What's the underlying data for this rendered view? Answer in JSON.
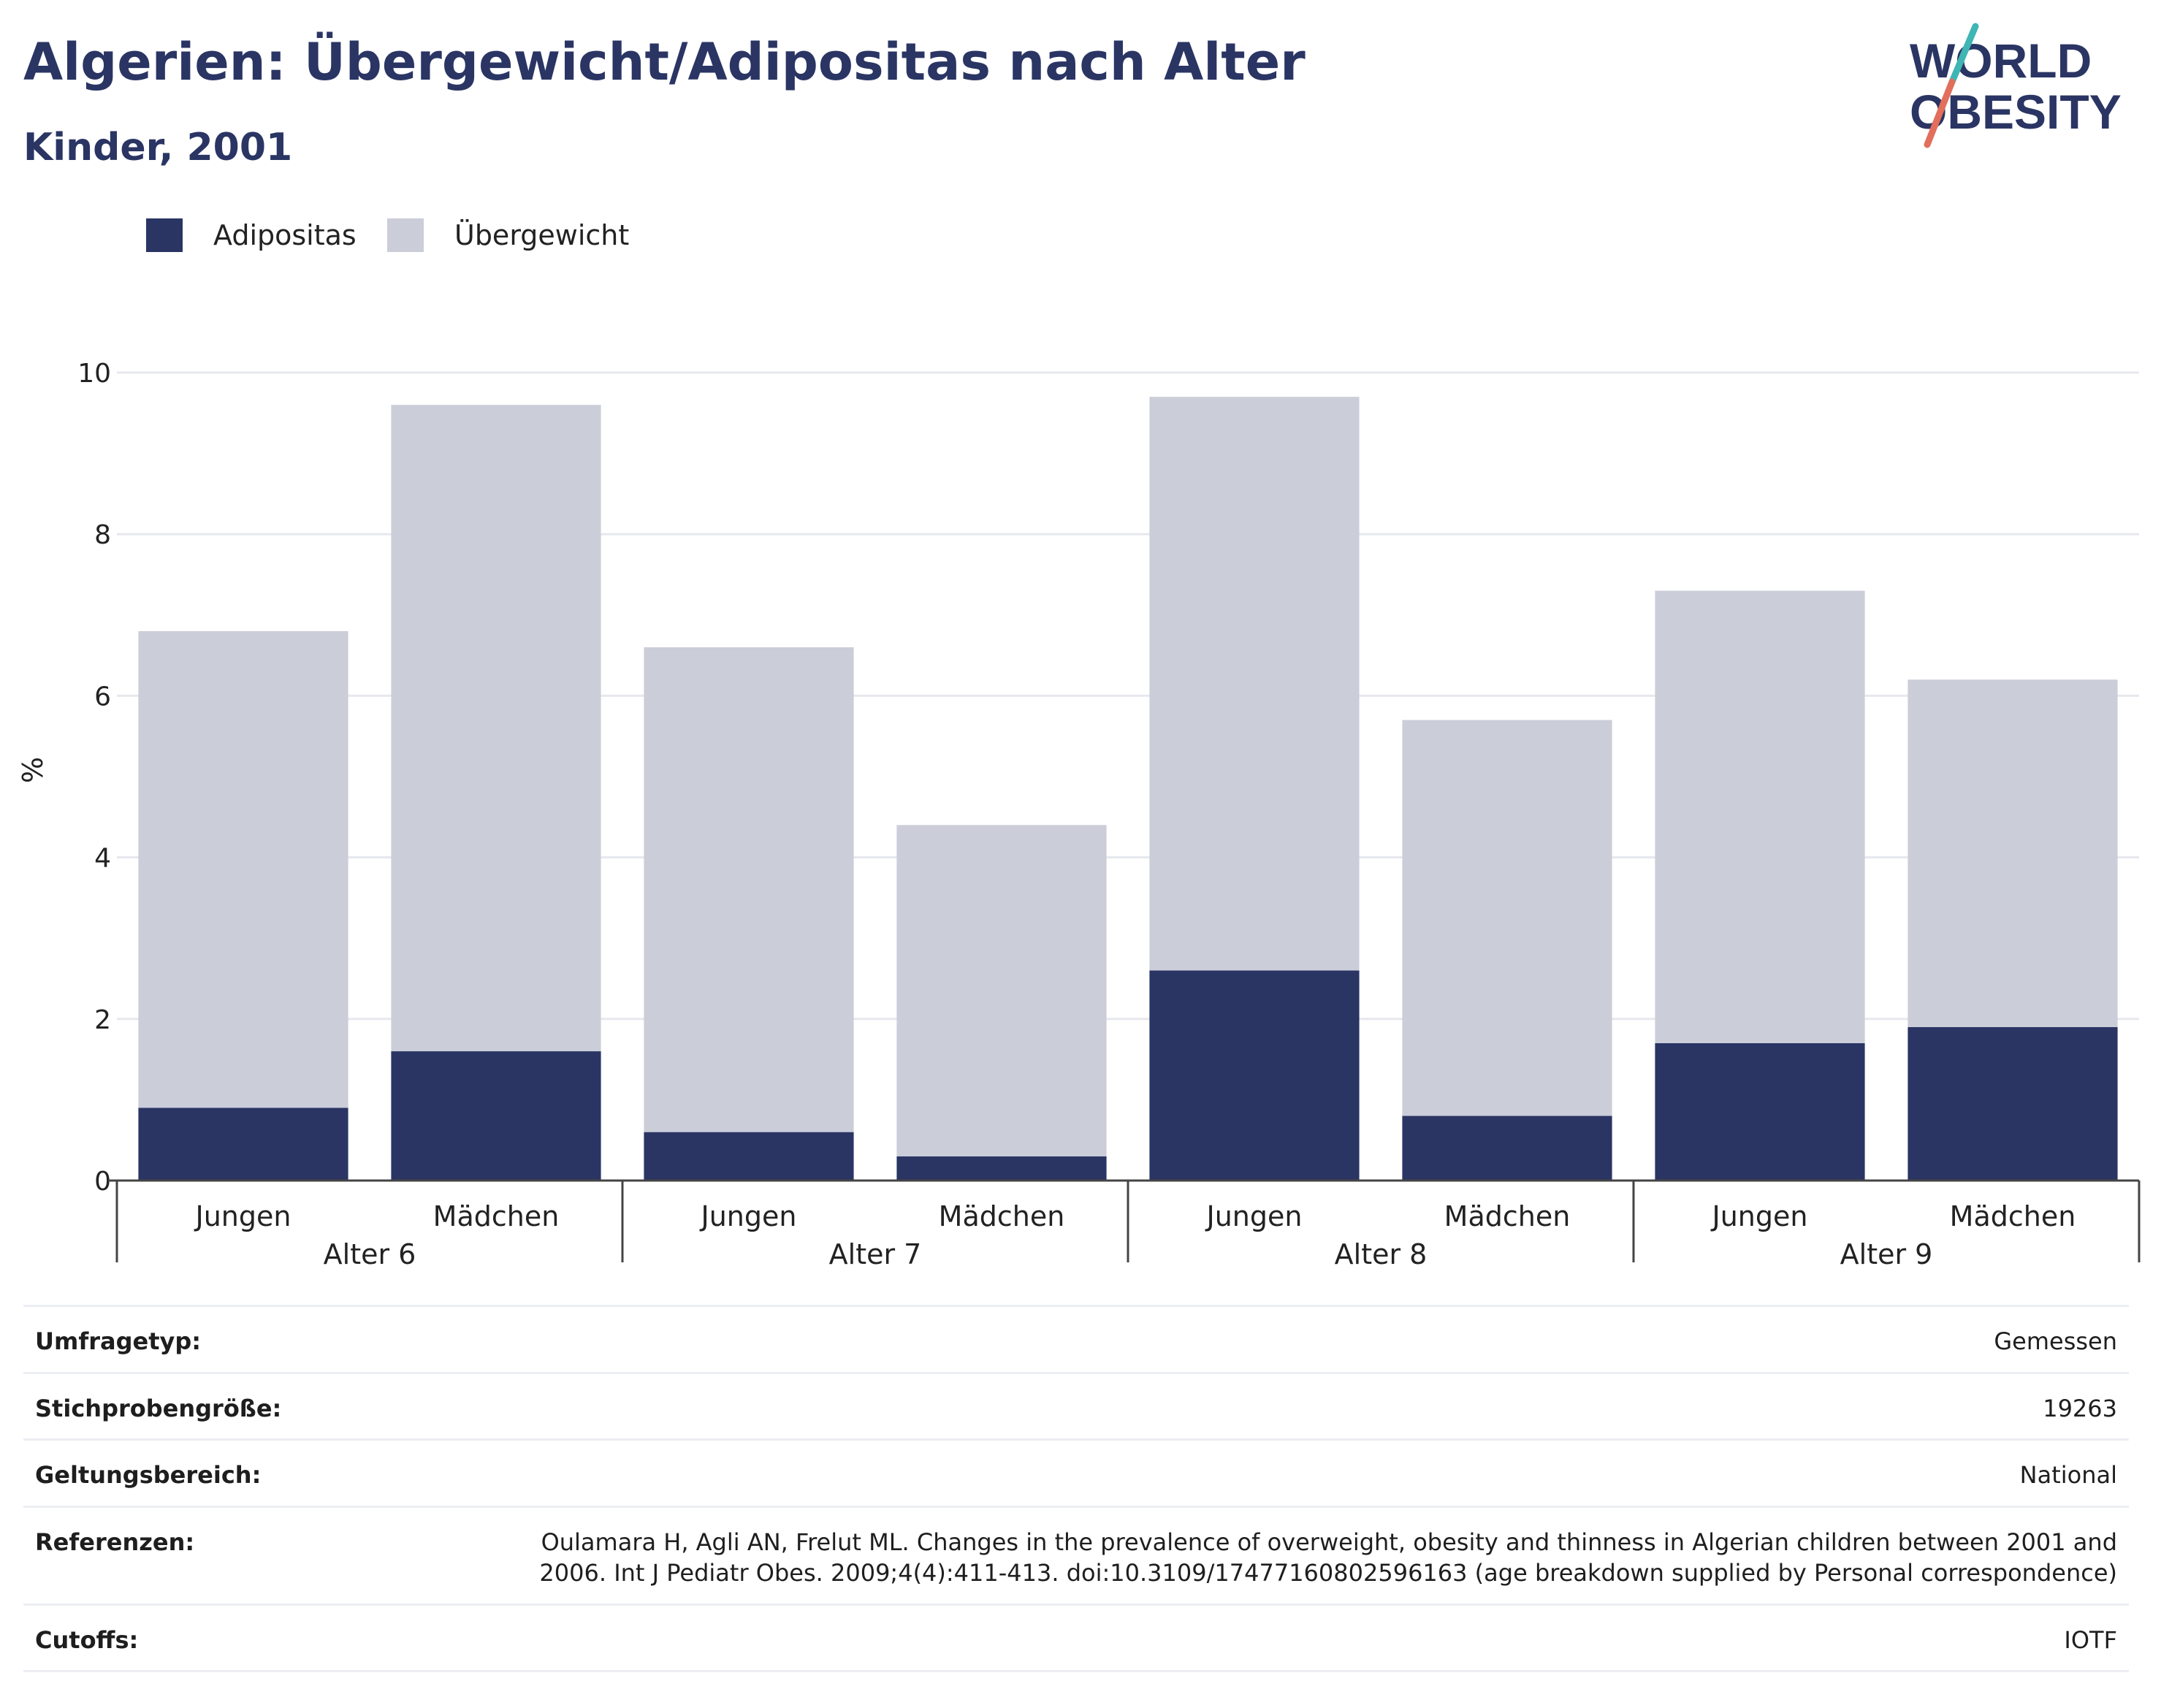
{
  "header": {
    "title": "Algerien: Übergewicht/Adipositas nach Alter",
    "subtitle": "Kinder, 2001"
  },
  "logo": {
    "line1": "WORLD",
    "line2": "OBESITY",
    "accent_teal": "#3fb5b4",
    "accent_coral": "#e26e5c"
  },
  "legend": {
    "items": [
      {
        "label": "Adipositas",
        "color": "#2a3564"
      },
      {
        "label": "Übergewicht",
        "color": "#cbcdd9"
      }
    ]
  },
  "chart_data": {
    "type": "bar",
    "stacked": true,
    "title": "",
    "xlabel": "",
    "ylabel": "%",
    "ylim": [
      0,
      10
    ],
    "yticks": [
      0,
      2,
      4,
      6,
      8,
      10
    ],
    "grid": true,
    "legend_position": "top-left",
    "groups": [
      {
        "label": "Alter 6",
        "categories": [
          "Jungen",
          "Mädchen"
        ]
      },
      {
        "label": "Alter 7",
        "categories": [
          "Jungen",
          "Mädchen"
        ]
      },
      {
        "label": "Alter 8",
        "categories": [
          "Jungen",
          "Mädchen"
        ]
      },
      {
        "label": "Alter 9",
        "categories": [
          "Jungen",
          "Mädchen"
        ]
      }
    ],
    "series": [
      {
        "name": "Adipositas",
        "color": "#2a3564",
        "values": [
          0.9,
          1.6,
          0.6,
          0.3,
          2.6,
          0.8,
          1.7,
          1.9
        ]
      },
      {
        "name": "Übergewicht",
        "color": "#cbcdd9",
        "values": [
          5.9,
          8.0,
          6.0,
          4.1,
          7.1,
          4.9,
          5.6,
          4.3
        ]
      }
    ]
  },
  "info": {
    "rows": [
      {
        "key": "Umfragetyp:",
        "value": "Gemessen"
      },
      {
        "key": "Stichprobengröße:",
        "value": "19263"
      },
      {
        "key": "Geltungsbereich:",
        "value": "National"
      },
      {
        "key": "Referenzen:",
        "value": "Oulamara H, Agli AN, Frelut ML. Changes in the prevalence of overweight, obesity and thinness in Algerian children between 2001 and 2006. Int J Pediatr Obes. 2009;4(4):411-413. doi:10.3109/17477160802596163 (age breakdown supplied by Personal correspondence)"
      },
      {
        "key": "Cutoffs:",
        "value": "IOTF"
      }
    ]
  }
}
